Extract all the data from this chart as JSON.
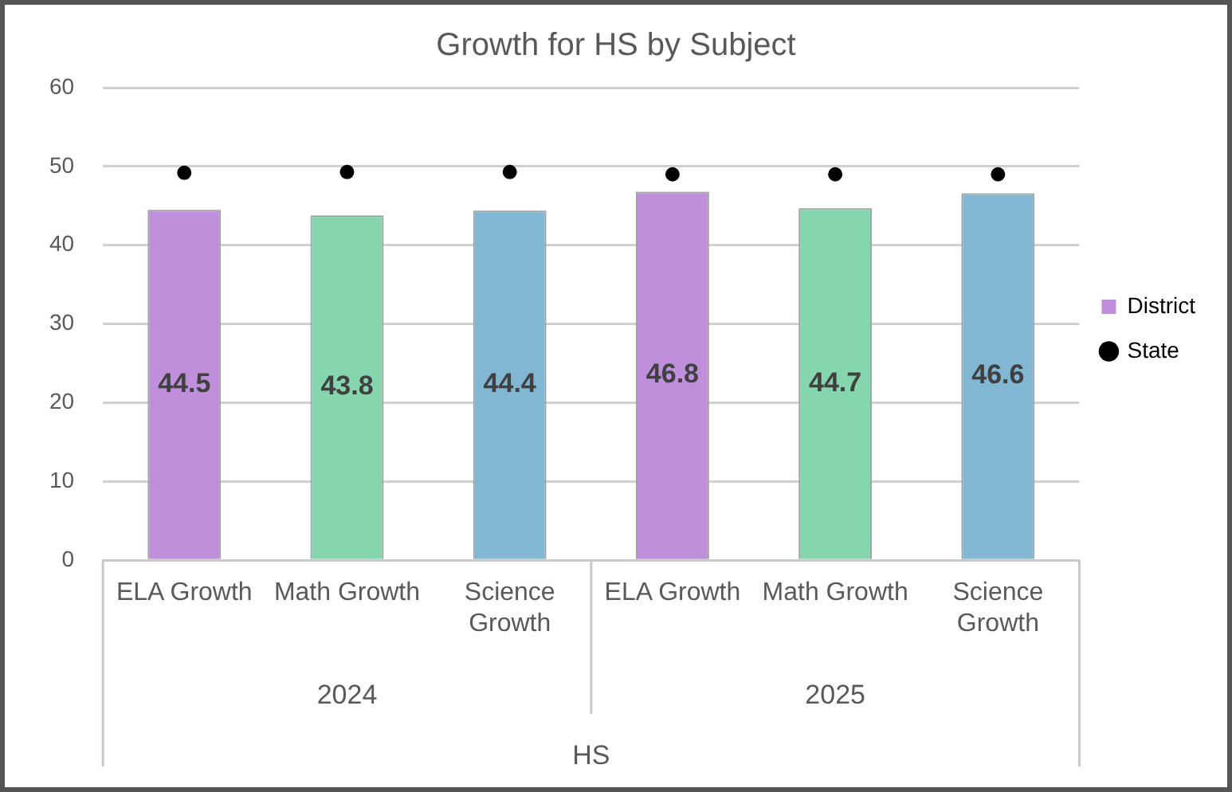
{
  "chart_data": {
    "type": "bar",
    "title": "Growth for HS by Subject",
    "xlabel": "HS",
    "categories": [
      "ELA Growth",
      "Math Growth",
      "Science Growth",
      "ELA Growth",
      "Math Growth",
      "Science Growth"
    ],
    "annotations": [
      "2024",
      "2025"
    ],
    "series": [
      {
        "name": "District",
        "color": "#bf8fdb",
        "colors": [
          "#bf8fdb",
          "#85d5ae",
          "#82b7d4",
          "#bf8fdb",
          "#85d5ae",
          "#82b7d4"
        ],
        "values": [
          44.5,
          43.8,
          44.4,
          46.8,
          44.7,
          46.6
        ],
        "value_labels": [
          "44.5",
          "43.8",
          "44.4",
          "46.8",
          "44.7",
          "46.6"
        ]
      },
      {
        "name": "State",
        "type": "scatter",
        "color": "#000000",
        "marker": "circle",
        "values": [
          49.2,
          49.3,
          49.3,
          49.0,
          49.0,
          49.0
        ]
      }
    ],
    "ylim": [
      0,
      60
    ],
    "yticks": [
      0,
      10,
      20,
      30,
      40,
      50,
      60
    ],
    "grid": "y",
    "legend": "right"
  }
}
